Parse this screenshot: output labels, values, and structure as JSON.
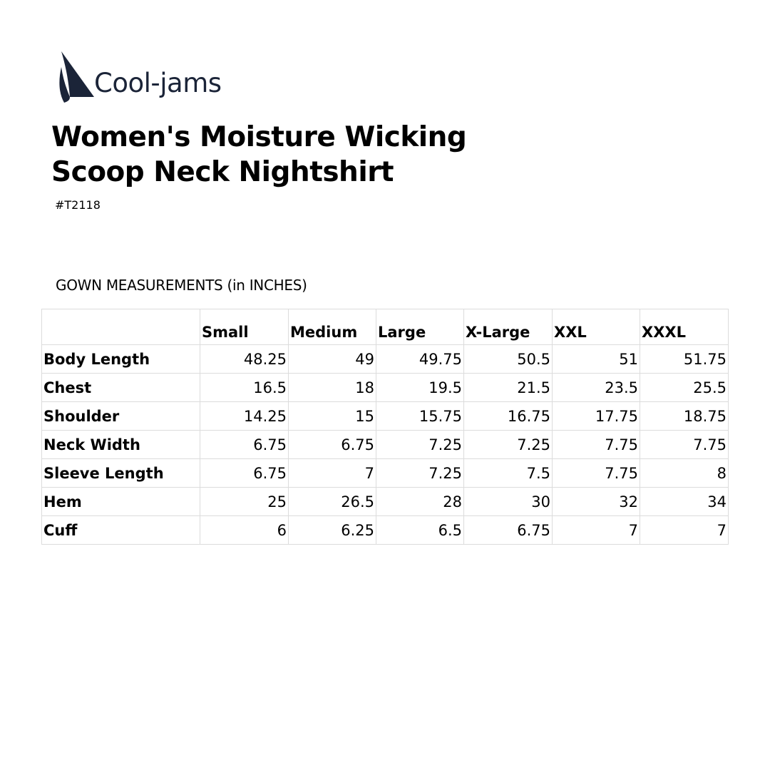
{
  "brand": {
    "name": "Cool-jams",
    "color": "#1b2438"
  },
  "product": {
    "title_line1": "Women's Moisture Wicking",
    "title_line2": "Scoop Neck Nightshirt",
    "sku": "#T2118"
  },
  "section_title": "GOWN MEASUREMENTS (in INCHES)",
  "table": {
    "columns": [
      "",
      "Small",
      "Medium",
      "Large",
      "X-Large",
      "XXL",
      "XXXL"
    ],
    "rows": [
      {
        "label": "Body Length",
        "values": [
          "48.25",
          "49",
          "49.75",
          "50.5",
          "51",
          "51.75"
        ]
      },
      {
        "label": "Chest",
        "values": [
          "16.5",
          "18",
          "19.5",
          "21.5",
          "23.5",
          "25.5"
        ]
      },
      {
        "label": "Shoulder",
        "values": [
          "14.25",
          "15",
          "15.75",
          "16.75",
          "17.75",
          "18.75"
        ]
      },
      {
        "label": "Neck Width",
        "values": [
          "6.75",
          "6.75",
          "7.25",
          "7.25",
          "7.75",
          "7.75"
        ]
      },
      {
        "label": "Sleeve Length",
        "values": [
          "6.75",
          "7",
          "7.25",
          "7.5",
          "7.75",
          "8"
        ]
      },
      {
        "label": "Hem",
        "values": [
          "25",
          "26.5",
          "28",
          "30",
          "32",
          "34"
        ]
      },
      {
        "label": "Cuff",
        "values": [
          "6",
          "6.25",
          "6.5",
          "6.75",
          "7",
          "7"
        ]
      }
    ]
  }
}
